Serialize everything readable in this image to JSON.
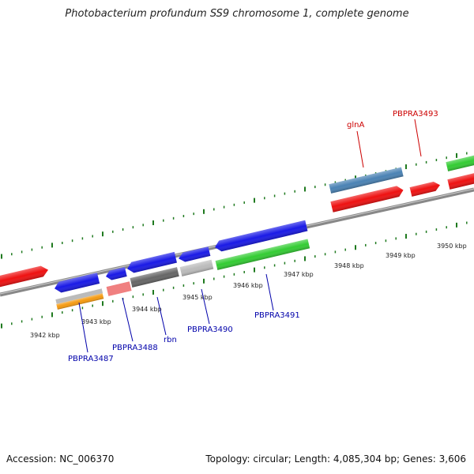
{
  "header": {
    "title": "Photobacterium profundum SS9 chromosome 1, complete genome"
  },
  "footer": {
    "accession": "Accession: NC_006370",
    "summary": "Topology: circular; Length: 4,085,304 bp; Genes: 3,606"
  },
  "scale": {
    "ticks": [
      "3942 kbp",
      "3943 kbp",
      "3944 kbp",
      "3945 kbp",
      "3946 kbp",
      "3947 kbp",
      "3948 kbp",
      "3949 kbp",
      "3950 kbp"
    ]
  },
  "gene_labels": {
    "glnA": "glnA",
    "pbpra3493": "PBPRA3493",
    "pbpra3487": "PBPRA3487",
    "pbpra3488": "PBPRA3488",
    "rbn": "rbn",
    "pbpra3490": "PBPRA3490",
    "pbpra3491": "PBPRA3491"
  },
  "colors": {
    "blue": "#1a1ae6",
    "red": "#ee1111",
    "green": "#33cc33",
    "steel": "#4a82b4",
    "grey": "#bbbbbb",
    "darkgrey": "#666666",
    "orange": "#f59a10",
    "pink": "#f08080",
    "tick": "#1f7a1f",
    "forward_label": "#cc0000",
    "reverse_label": "#0000aa"
  }
}
